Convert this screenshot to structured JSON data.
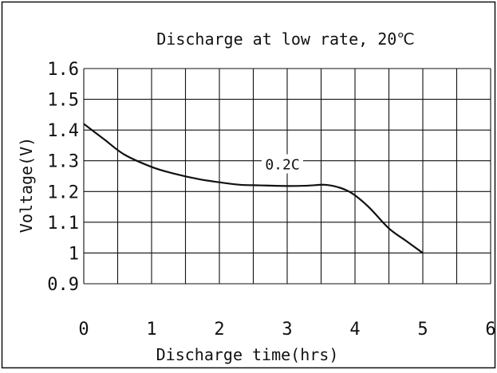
{
  "chart_data": {
    "type": "line",
    "title": "Discharge at low rate, 20℃",
    "xlabel": "Discharge time(hrs)",
    "ylabel": "Voltage(V)",
    "xlim": [
      0,
      6
    ],
    "ylim": [
      0.9,
      1.6
    ],
    "x_ticks": [
      "0",
      "1",
      "2",
      "3",
      "4",
      "5",
      "6"
    ],
    "y_ticks": [
      "0.9",
      "1",
      "1.1",
      "1.2",
      "1.3",
      "1.4",
      "1.5",
      "1.6"
    ],
    "grid": true,
    "x_grid_step": 0.5,
    "y_grid_step": 0.1,
    "series": [
      {
        "name": "0.2C",
        "x": [
          0,
          0.3,
          0.6,
          1.0,
          1.3,
          1.7,
          2.0,
          2.3,
          2.6,
          3.0,
          3.3,
          3.55,
          3.75,
          3.95,
          4.2,
          4.5,
          4.75,
          5.0
        ],
        "y": [
          1.42,
          1.37,
          1.32,
          1.28,
          1.26,
          1.24,
          1.23,
          1.222,
          1.22,
          1.218,
          1.219,
          1.222,
          1.214,
          1.195,
          1.15,
          1.08,
          1.04,
          1.0
        ]
      }
    ],
    "annotations": [
      {
        "text": "0.2C"
      }
    ],
    "line_color": "#111111",
    "grid_color": "#111111"
  }
}
